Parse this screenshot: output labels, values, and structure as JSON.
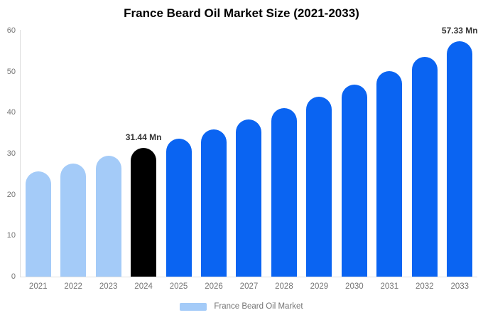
{
  "chart": {
    "title": "France Beard Oil Market Size (2021-2033)",
    "legend_label": "France Beard Oil Market"
  },
  "chart_data": {
    "type": "bar",
    "title": "France Beard Oil Market Size (2021-2033)",
    "categories": [
      "2021",
      "2022",
      "2023",
      "2024",
      "2025",
      "2026",
      "2027",
      "2028",
      "2029",
      "2030",
      "2031",
      "2032",
      "2033"
    ],
    "values": [
      25.7,
      27.5,
      29.4,
      31.44,
      33.6,
      35.9,
      38.4,
      41.1,
      43.9,
      46.9,
      50.2,
      53.6,
      57.33
    ],
    "unit": "Mn",
    "segments": [
      "past",
      "past",
      "past",
      "current",
      "forecast",
      "forecast",
      "forecast",
      "forecast",
      "forecast",
      "forecast",
      "forecast",
      "forecast",
      "forecast"
    ],
    "segment_colors": {
      "past": "#A4CBF8",
      "current": "#000000",
      "forecast": "#0A64F2"
    },
    "annotations": [
      {
        "category": "2024",
        "text": "31.44 Mn"
      },
      {
        "category": "2033",
        "text": "57.33 Mn"
      }
    ],
    "ylim": [
      0,
      60
    ],
    "yticks": [
      0,
      10,
      20,
      30,
      40,
      50,
      60
    ],
    "grid": false,
    "legend_position": "bottom",
    "legend": [
      {
        "label": "France Beard Oil Market",
        "color": "#A4CBF8"
      }
    ]
  }
}
